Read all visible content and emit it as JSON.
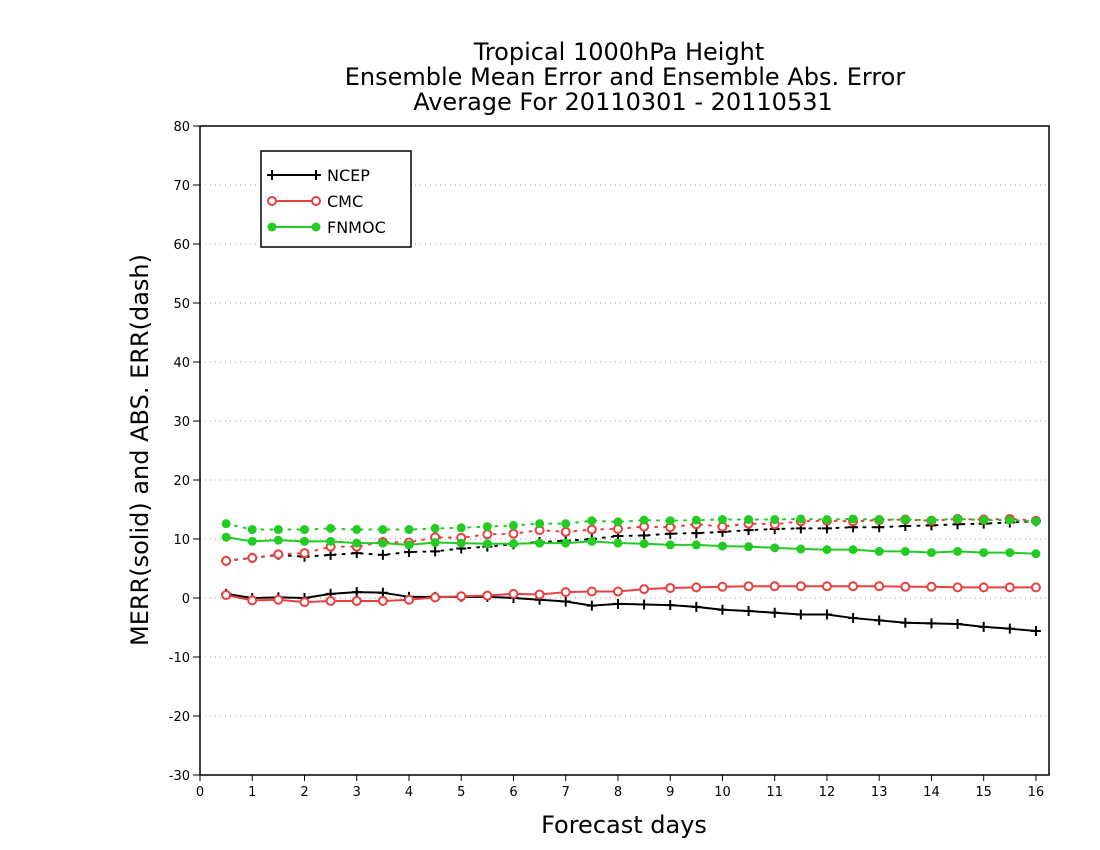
{
  "chart_data": {
    "type": "line",
    "title": [
      "Tropical 1000hPa Height",
      "Ensemble Mean Error and Ensemble Abs. Error",
      "Average For 20110301 - 20110531"
    ],
    "xlabel": "Forecast days",
    "ylabel": "MERR(solid) and ABS. ERR(dash)",
    "xlim": [
      0,
      16.25
    ],
    "ylim": [
      -30,
      80
    ],
    "xticks": [
      0,
      1,
      2,
      3,
      4,
      5,
      6,
      7,
      8,
      9,
      10,
      11,
      12,
      13,
      14,
      15,
      16
    ],
    "yticks": [
      -30,
      -20,
      -10,
      0,
      10,
      20,
      30,
      40,
      50,
      60,
      70,
      80
    ],
    "grid": "horizontal dotted",
    "legend_position": "top-left",
    "x": [
      0.5,
      1,
      1.5,
      2,
      2.5,
      3,
      3.5,
      4,
      4.5,
      5,
      5.5,
      6,
      6.5,
      7,
      7.5,
      8,
      8.5,
      9,
      9.5,
      10,
      10.5,
      11,
      11.5,
      12,
      12.5,
      13,
      13.5,
      14,
      14.5,
      15,
      15.5,
      16
    ],
    "series": [
      {
        "name": "NCEP",
        "color": "#000000",
        "marker": "plus",
        "merr": [
          0.7,
          0.0,
          0.1,
          0.0,
          0.7,
          1.0,
          0.9,
          0.2,
          0.2,
          0.2,
          0.2,
          0.0,
          -0.3,
          -0.6,
          -1.3,
          -1.0,
          -1.1,
          -1.2,
          -1.5,
          -2.0,
          -2.2,
          -2.5,
          -2.8,
          -2.8,
          -3.4,
          -3.8,
          -4.2,
          -4.3,
          -4.4,
          -4.9,
          -5.2,
          -5.6
        ],
        "abs_err": [
          6.3,
          6.8,
          7.3,
          7.0,
          7.3,
          7.6,
          7.3,
          7.8,
          7.9,
          8.4,
          8.7,
          9.1,
          9.5,
          9.7,
          10.0,
          10.5,
          10.6,
          10.9,
          11.0,
          11.2,
          11.5,
          11.7,
          11.8,
          11.8,
          12.0,
          12.0,
          12.2,
          12.3,
          12.5,
          12.6,
          12.8,
          13.0
        ]
      },
      {
        "name": "CMC",
        "color": "#e84040",
        "marker": "open-circle",
        "merr": [
          0.5,
          -0.4,
          -0.3,
          -0.7,
          -0.5,
          -0.5,
          -0.5,
          -0.3,
          0.1,
          0.3,
          0.4,
          0.7,
          0.6,
          1.0,
          1.1,
          1.1,
          1.5,
          1.7,
          1.8,
          1.9,
          2.0,
          2.0,
          2.0,
          2.0,
          2.0,
          2.0,
          1.9,
          1.9,
          1.8,
          1.8,
          1.8,
          1.8
        ],
        "abs_err": [
          6.3,
          6.8,
          7.4,
          7.6,
          8.7,
          8.7,
          9.5,
          9.4,
          10.3,
          10.2,
          10.8,
          10.9,
          11.5,
          11.2,
          11.6,
          11.7,
          12.1,
          12.0,
          12.5,
          12.1,
          12.6,
          12.5,
          13.0,
          13.1,
          13.0,
          13.2,
          13.3,
          13.1,
          13.4,
          13.3,
          13.4,
          13.1
        ]
      },
      {
        "name": "FNMOC",
        "color": "#22cc22",
        "marker": "filled-circle",
        "merr": [
          10.3,
          9.6,
          9.8,
          9.6,
          9.6,
          9.3,
          9.3,
          9.0,
          9.4,
          9.3,
          9.2,
          9.2,
          9.3,
          9.3,
          9.6,
          9.3,
          9.2,
          9.0,
          9.0,
          8.8,
          8.7,
          8.5,
          8.3,
          8.2,
          8.2,
          7.9,
          7.9,
          7.7,
          7.9,
          7.7,
          7.7,
          7.5
        ],
        "abs_err": [
          12.6,
          11.6,
          11.6,
          11.6,
          11.8,
          11.6,
          11.6,
          11.6,
          11.8,
          11.9,
          12.1,
          12.3,
          12.6,
          12.6,
          13.1,
          12.9,
          13.2,
          13.1,
          13.2,
          13.3,
          13.3,
          13.3,
          13.4,
          13.3,
          13.4,
          13.3,
          13.3,
          13.2,
          13.4,
          13.2,
          13.2,
          13.0
        ]
      }
    ]
  }
}
